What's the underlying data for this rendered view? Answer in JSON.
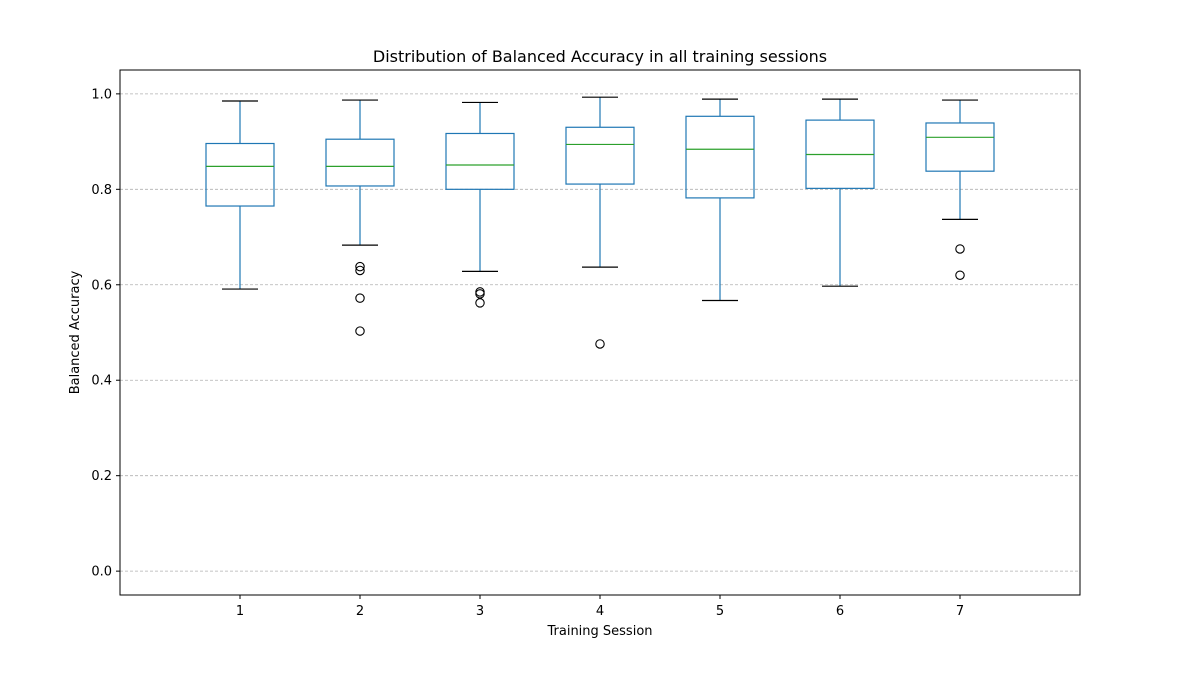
{
  "chart_data": {
    "type": "boxplot",
    "title": "Distribution of Balanced Accuracy in all training sessions",
    "xlabel": "Training Session",
    "ylabel": "Balanced Accuracy",
    "ylim": [
      -0.05,
      1.05
    ],
    "yticks": [
      0.0,
      0.2,
      0.4,
      0.6,
      0.8,
      1.0
    ],
    "ytick_labels": [
      "0.0",
      "0.2",
      "0.4",
      "0.6",
      "0.8",
      "1.0"
    ],
    "grid": "y-dashed",
    "box_color": "#1f77b4",
    "median_color": "#2ca02c",
    "whisker_cap_color": "#000000",
    "categories": [
      "1",
      "2",
      "3",
      "4",
      "5",
      "6",
      "7"
    ],
    "boxes": [
      {
        "category": "1",
        "whisker_low": 0.591,
        "q1": 0.765,
        "median": 0.848,
        "q3": 0.896,
        "whisker_high": 0.985,
        "outliers": []
      },
      {
        "category": "2",
        "whisker_low": 0.683,
        "q1": 0.807,
        "median": 0.848,
        "q3": 0.905,
        "whisker_high": 0.987,
        "outliers": [
          0.638,
          0.63,
          0.572,
          0.503
        ]
      },
      {
        "category": "3",
        "whisker_low": 0.628,
        "q1": 0.8,
        "median": 0.851,
        "q3": 0.917,
        "whisker_high": 0.982,
        "outliers": [
          0.585,
          0.581,
          0.562
        ]
      },
      {
        "category": "4",
        "whisker_low": 0.637,
        "q1": 0.811,
        "median": 0.894,
        "q3": 0.93,
        "whisker_high": 0.993,
        "outliers": [
          0.476
        ]
      },
      {
        "category": "5",
        "whisker_low": 0.567,
        "q1": 0.782,
        "median": 0.884,
        "q3": 0.953,
        "whisker_high": 0.989,
        "outliers": []
      },
      {
        "category": "6",
        "whisker_low": 0.597,
        "q1": 0.802,
        "median": 0.873,
        "q3": 0.945,
        "whisker_high": 0.989,
        "outliers": []
      },
      {
        "category": "7",
        "whisker_low": 0.737,
        "q1": 0.838,
        "median": 0.909,
        "q3": 0.939,
        "whisker_high": 0.987,
        "outliers": [
          0.675,
          0.62
        ]
      }
    ]
  }
}
